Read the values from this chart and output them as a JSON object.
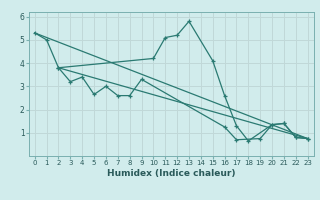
{
  "xlabel": "Humidex (Indice chaleur)",
  "xlim": [
    -0.5,
    23.5
  ],
  "ylim": [
    0,
    6.2
  ],
  "xticks": [
    0,
    1,
    2,
    3,
    4,
    5,
    6,
    7,
    8,
    9,
    10,
    11,
    12,
    13,
    14,
    15,
    16,
    17,
    18,
    19,
    20,
    21,
    22,
    23
  ],
  "yticks": [
    1,
    2,
    3,
    4,
    5,
    6
  ],
  "background_color": "#d1ecec",
  "grid_color": "#c0d8d8",
  "line_color": "#2a7a72",
  "line1_x": [
    0,
    1,
    2,
    10,
    11,
    12,
    13,
    15,
    16,
    17,
    18,
    20,
    21,
    22,
    23
  ],
  "line1_y": [
    5.3,
    5.0,
    3.8,
    4.2,
    5.1,
    5.2,
    5.8,
    4.1,
    2.6,
    1.3,
    0.65,
    1.35,
    1.4,
    0.8,
    0.75
  ],
  "line2_x": [
    2,
    3,
    4,
    5,
    6,
    7,
    8,
    9,
    16,
    17,
    19,
    20,
    21,
    22,
    23
  ],
  "line2_y": [
    3.8,
    3.2,
    3.4,
    2.65,
    3.0,
    2.6,
    2.6,
    3.3,
    1.25,
    0.7,
    0.75,
    1.35,
    1.4,
    0.8,
    0.75
  ],
  "line3_x": [
    0,
    23
  ],
  "line3_y": [
    5.3,
    0.75
  ],
  "line4_x": [
    2,
    23
  ],
  "line4_y": [
    3.8,
    0.75
  ]
}
